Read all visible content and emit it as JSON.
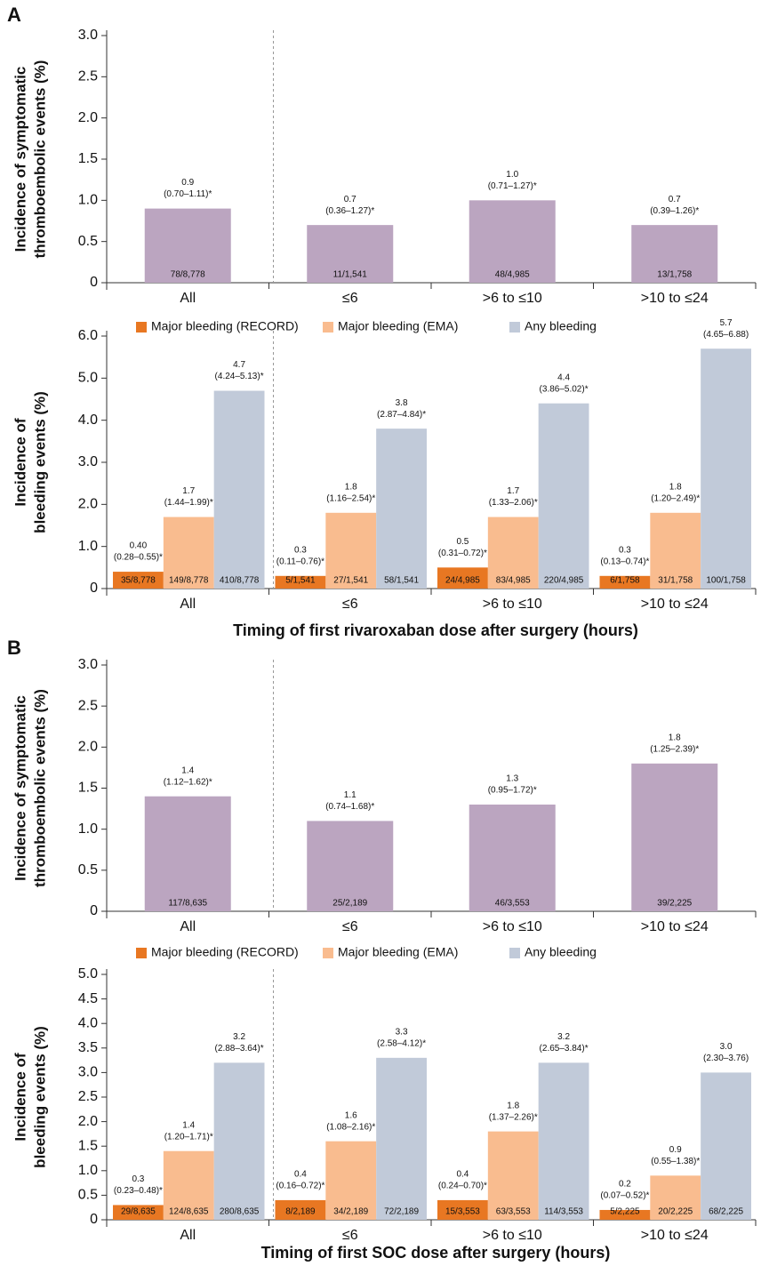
{
  "chart_data": [
    {
      "type": "bar",
      "panel": "A",
      "ylabel": [
        "Incidence of symptomatic",
        "thromboembolic events (%)"
      ],
      "categories": [
        "All",
        "≤6",
        ">6 to ≤10",
        ">10 to ≤24"
      ],
      "values": [
        0.9,
        0.7,
        1,
        0.7
      ],
      "value_labels": [
        "0.9",
        "0.7",
        "1.0",
        "0.7"
      ],
      "ci_labels": [
        "(0.70–1.11)*",
        "(0.36–1.27)*",
        "(0.71–1.27)*",
        "(0.39–1.26)*"
      ],
      "count_labels": [
        "78/8,778",
        "11/1,541",
        "48/4,985",
        "13/1,758"
      ],
      "color": "#bba5c0",
      "ylim": [
        0,
        3
      ],
      "yticks": [
        0,
        0.5,
        {
          "value": 1,
          "label": "1.0"
        },
        1.5,
        {
          "value": 2,
          "label": "2.0"
        },
        2.5,
        {
          "value": 3,
          "label": "3.0"
        }
      ]
    },
    {
      "type": "grouped_bar",
      "ylabel": [
        "Incidence of",
        "bleeding events (%)"
      ],
      "xlabel": "Timing of first rivaroxaban dose after surgery (hours)",
      "categories": [
        "All",
        "≤6",
        ">6 to ≤10",
        ">10 to ≤24"
      ],
      "series": [
        {
          "name": "Major bleeding (RECORD)",
          "color": "#e87722",
          "values": [
            0.4,
            0.3,
            0.5,
            0.3
          ],
          "value_labels": [
            "0.40",
            "0.3",
            "0.5",
            "0.3"
          ],
          "ci_labels": [
            "(0.28–0.55)*",
            "(0.11–0.76)*",
            "(0.31–0.72)*",
            "(0.13–0.74)*"
          ],
          "count_labels": [
            "35/8,778",
            "5/1,541",
            "24/4,985",
            "6/1,758"
          ]
        },
        {
          "name": "Major bleeding (EMA)",
          "color": "#f9bc8f",
          "values": [
            1.7,
            1.8,
            1.7,
            1.8
          ],
          "ci_labels": [
            "(1.44–1.99)*",
            "(1.16–2.54)*",
            "(1.33–2.06)*",
            "(1.20–2.49)*"
          ],
          "count_labels": [
            "149/8,778",
            "27/1,541",
            "83/4,985",
            "31/1,758"
          ]
        },
        {
          "name": "Any bleeding",
          "color": "#c1cad9",
          "values": [
            4.7,
            3.8,
            4.4,
            5.7
          ],
          "ci_labels": [
            "(4.24–5.13)*",
            "(2.87–4.84)*",
            "(3.86–5.02)*",
            "(4.65–6.88)"
          ],
          "count_labels": [
            "410/8,778",
            "58/1,541",
            "220/4,985",
            "100/1,758"
          ]
        }
      ],
      "ylim": [
        0,
        6
      ],
      "yticks": [
        0,
        {
          "value": 1,
          "label": "1.0"
        },
        {
          "value": 2,
          "label": "2.0"
        },
        {
          "value": 3,
          "label": "3.0"
        },
        {
          "value": 4,
          "label": "4.0"
        },
        {
          "value": 5,
          "label": "5.0"
        },
        {
          "value": 6,
          "label": "6.0"
        }
      ]
    },
    {
      "type": "bar",
      "panel": "B",
      "ylabel": [
        "Incidence of symptomatic",
        "thromboembolic events (%)"
      ],
      "categories": [
        "All",
        "≤6",
        ">6 to ≤10",
        ">10 to ≤24"
      ],
      "values": [
        1.4,
        1.1,
        1.3,
        1.8
      ],
      "ci_labels": [
        "(1.12–1.62)*",
        "(0.74–1.68)*",
        "(0.95–1.72)*",
        "(1.25–2.39)*"
      ],
      "count_labels": [
        "117/8,635",
        "25/2,189",
        "46/3,553",
        "39/2,225"
      ],
      "color": "#bba5c0",
      "ylim": [
        0,
        3
      ],
      "yticks": [
        0,
        0.5,
        {
          "value": 1,
          "label": "1.0"
        },
        1.5,
        {
          "value": 2,
          "label": "2.0"
        },
        2.5,
        {
          "value": 3,
          "label": "3.0"
        }
      ]
    },
    {
      "type": "grouped_bar",
      "ylabel": [
        "Incidence of",
        "bleeding events (%)"
      ],
      "xlabel": "Timing of first SOC dose after surgery (hours)",
      "categories": [
        "All",
        "≤6",
        ">6 to ≤10",
        ">10 to ≤24"
      ],
      "series": [
        {
          "name": "Major bleeding (RECORD)",
          "color": "#e87722",
          "values": [
            0.3,
            0.4,
            0.4,
            0.2
          ],
          "ci_labels": [
            "(0.23–0.48)*",
            "(0.16–0.72)*",
            "(0.24–0.70)*",
            "(0.07–0.52)*"
          ],
          "count_labels": [
            "29/8,635",
            "8/2,189",
            "15/3,553",
            "5/2,225"
          ]
        },
        {
          "name": "Major bleeding (EMA)",
          "color": "#f9bc8f",
          "values": [
            1.4,
            1.6,
            1.8,
            0.9
          ],
          "ci_labels": [
            "(1.20–1.71)*",
            "(1.08–2.16)*",
            "(1.37–2.26)*",
            "(0.55–1.38)*"
          ],
          "count_labels": [
            "124/8,635",
            "34/2,189",
            "63/3,553",
            "20/2,225"
          ]
        },
        {
          "name": "Any bleeding",
          "color": "#c1cad9",
          "values": [
            3.2,
            3.3,
            3.2,
            3
          ],
          "value_labels": [
            "3.2",
            "3.3",
            "3.2",
            "3.0"
          ],
          "ci_labels": [
            "(2.88–3.64)*",
            "(2.58–4.12)*",
            "(2.65–3.84)*",
            "(2.30–3.76)"
          ],
          "count_labels": [
            "280/8,635",
            "72/2,189",
            "114/3,553",
            "68/2,225"
          ]
        }
      ],
      "ylim": [
        0,
        5
      ],
      "yticks": [
        0,
        0.5,
        {
          "value": 1,
          "label": "1.0"
        },
        1.5,
        {
          "value": 2,
          "label": "2.0"
        },
        2.5,
        {
          "value": 3,
          "label": "3.0"
        },
        3.5,
        {
          "value": 4,
          "label": "4.0"
        },
        4.5,
        {
          "value": 5,
          "label": "5.0"
        }
      ]
    }
  ]
}
